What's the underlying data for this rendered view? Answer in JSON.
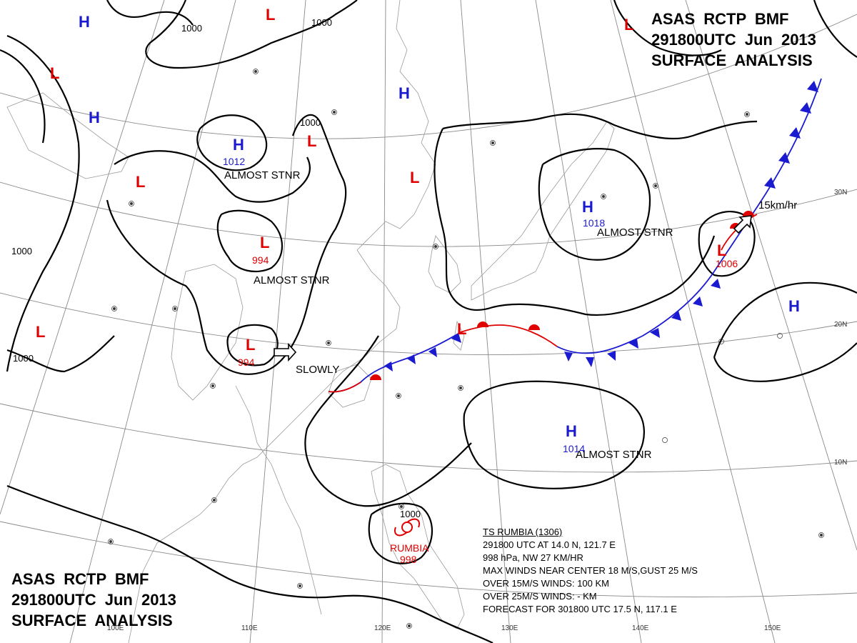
{
  "header": {
    "line1": "ASAS RCTP BMF",
    "line2": "291800UTC Jun 2013",
    "line3": "SURFACE ANALYSIS"
  },
  "footer": {
    "line1": "ASAS RCTP BMF",
    "line2": "291800UTC Jun 2013",
    "line3": "SURFACE ANALYSIS"
  },
  "storm_info": {
    "name": "TS RUMBIA (1306)",
    "position": "291800 UTC AT 14.0 N, 121.7 E",
    "pressure_motion": "998 hPa, NW 27 KM/HR",
    "max_winds": "MAX WINDS NEAR CENTER 18 M/S,GUST 25 M/S",
    "r15": "OVER 15M/S WINDS: 100 KM",
    "r25": "OVER 25M/S WINDS: - KM",
    "forecast": "FORECAST FOR 301800 UTC 17.5 N, 117.1 E"
  },
  "colors": {
    "high": "#1a1ad0",
    "low": "#e00000",
    "isobar": "#000000",
    "cold_front": "#1a1ad0",
    "warm_front": "#e00000",
    "grid": "#8a8a8a",
    "coast": "#9a9a9a"
  },
  "pressure_systems": [
    {
      "type": "H"
    },
    {
      "type": "H"
    },
    {
      "type": "H",
      "value": "1012",
      "note": "ALMOST STNR"
    },
    {
      "type": "H"
    },
    {
      "type": "H",
      "value": "1018",
      "note": "ALMOST STNR"
    },
    {
      "type": "H"
    },
    {
      "type": "H",
      "value": "1014",
      "note": "ALMOST STNR"
    },
    {
      "type": "L"
    },
    {
      "type": "L"
    },
    {
      "type": "L"
    },
    {
      "type": "L"
    },
    {
      "type": "L",
      "value": "994",
      "note": "ALMOST STNR"
    },
    {
      "type": "L",
      "value": "994",
      "note": "SLOWLY"
    },
    {
      "type": "L"
    },
    {
      "type": "L"
    },
    {
      "type": "L",
      "value": "1006",
      "note": "15km/hr"
    },
    {
      "type": "L",
      "value": "998",
      "note": "RUMBIA"
    }
  ],
  "isobar_labels": [
    "1000",
    "1000",
    "1000",
    "1000",
    "1000",
    "1000"
  ],
  "axis_labels": [
    "110E",
    "120E",
    "130E",
    "140E",
    "150E",
    "100E",
    "30N",
    "20N",
    "10N"
  ]
}
